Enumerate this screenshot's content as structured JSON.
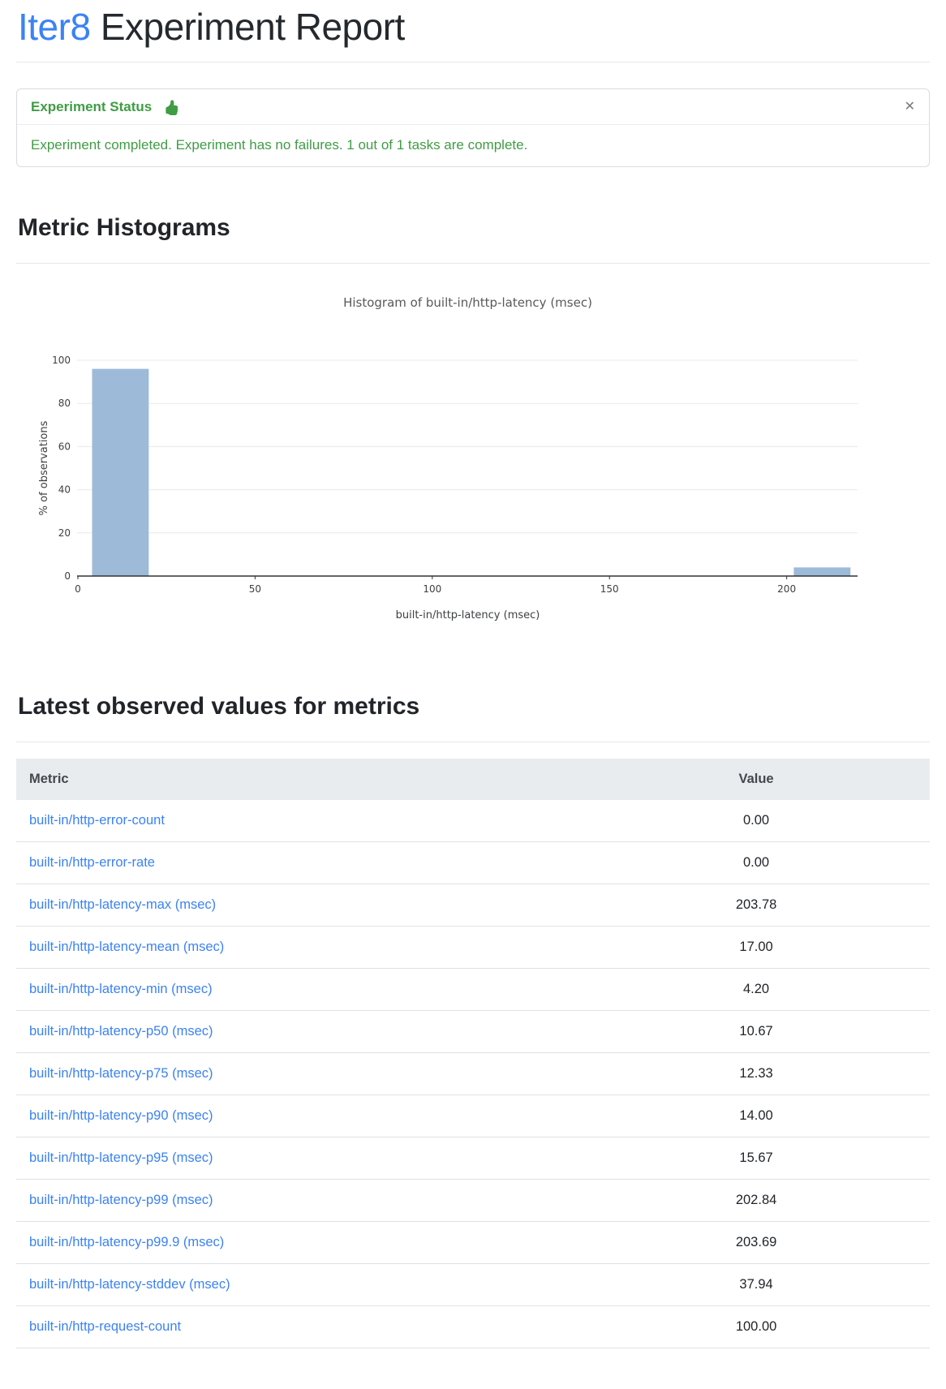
{
  "page": {
    "title_accent": "Iter8",
    "title_rest": " Experiment Report",
    "accent_color": "#3b82f6"
  },
  "status_card": {
    "header": "Experiment Status",
    "message": "Experiment completed. Experiment has no failures. 1 out of 1 tasks are complete.",
    "close_glyph": "✕",
    "status_color": "#3f9d44"
  },
  "sections": {
    "histograms_heading": "Metric Histograms",
    "metrics_heading": "Latest observed values for metrics"
  },
  "chart_data": {
    "type": "bar",
    "title": "Histogram of built-in/http-latency (msec)",
    "xlabel": "built-in/http-latency (msec)",
    "ylabel": "% of observations",
    "xlim": [
      0,
      220
    ],
    "ylim": [
      0,
      100
    ],
    "x_ticks": [
      0,
      50,
      100,
      150,
      200
    ],
    "y_ticks": [
      0,
      20,
      40,
      60,
      80,
      100
    ],
    "grid": true,
    "legend": false,
    "bar_color": "#9dbbd9",
    "bins": [
      {
        "x0": 4,
        "x1": 20,
        "pct": 96
      },
      {
        "x0": 202,
        "x1": 218,
        "pct": 4
      }
    ]
  },
  "metrics_table": {
    "columns": [
      "Metric",
      "Value"
    ],
    "rows": [
      {
        "metric": "built-in/http-error-count",
        "value": "0.00"
      },
      {
        "metric": "built-in/http-error-rate",
        "value": "0.00"
      },
      {
        "metric": "built-in/http-latency-max (msec)",
        "value": "203.78"
      },
      {
        "metric": "built-in/http-latency-mean (msec)",
        "value": "17.00"
      },
      {
        "metric": "built-in/http-latency-min (msec)",
        "value": "4.20"
      },
      {
        "metric": "built-in/http-latency-p50 (msec)",
        "value": "10.67"
      },
      {
        "metric": "built-in/http-latency-p75 (msec)",
        "value": "12.33"
      },
      {
        "metric": "built-in/http-latency-p90 (msec)",
        "value": "14.00"
      },
      {
        "metric": "built-in/http-latency-p95 (msec)",
        "value": "15.67"
      },
      {
        "metric": "built-in/http-latency-p99 (msec)",
        "value": "202.84"
      },
      {
        "metric": "built-in/http-latency-p99.9 (msec)",
        "value": "203.69"
      },
      {
        "metric": "built-in/http-latency-stddev (msec)",
        "value": "37.94"
      },
      {
        "metric": "built-in/http-request-count",
        "value": "100.00"
      }
    ]
  }
}
